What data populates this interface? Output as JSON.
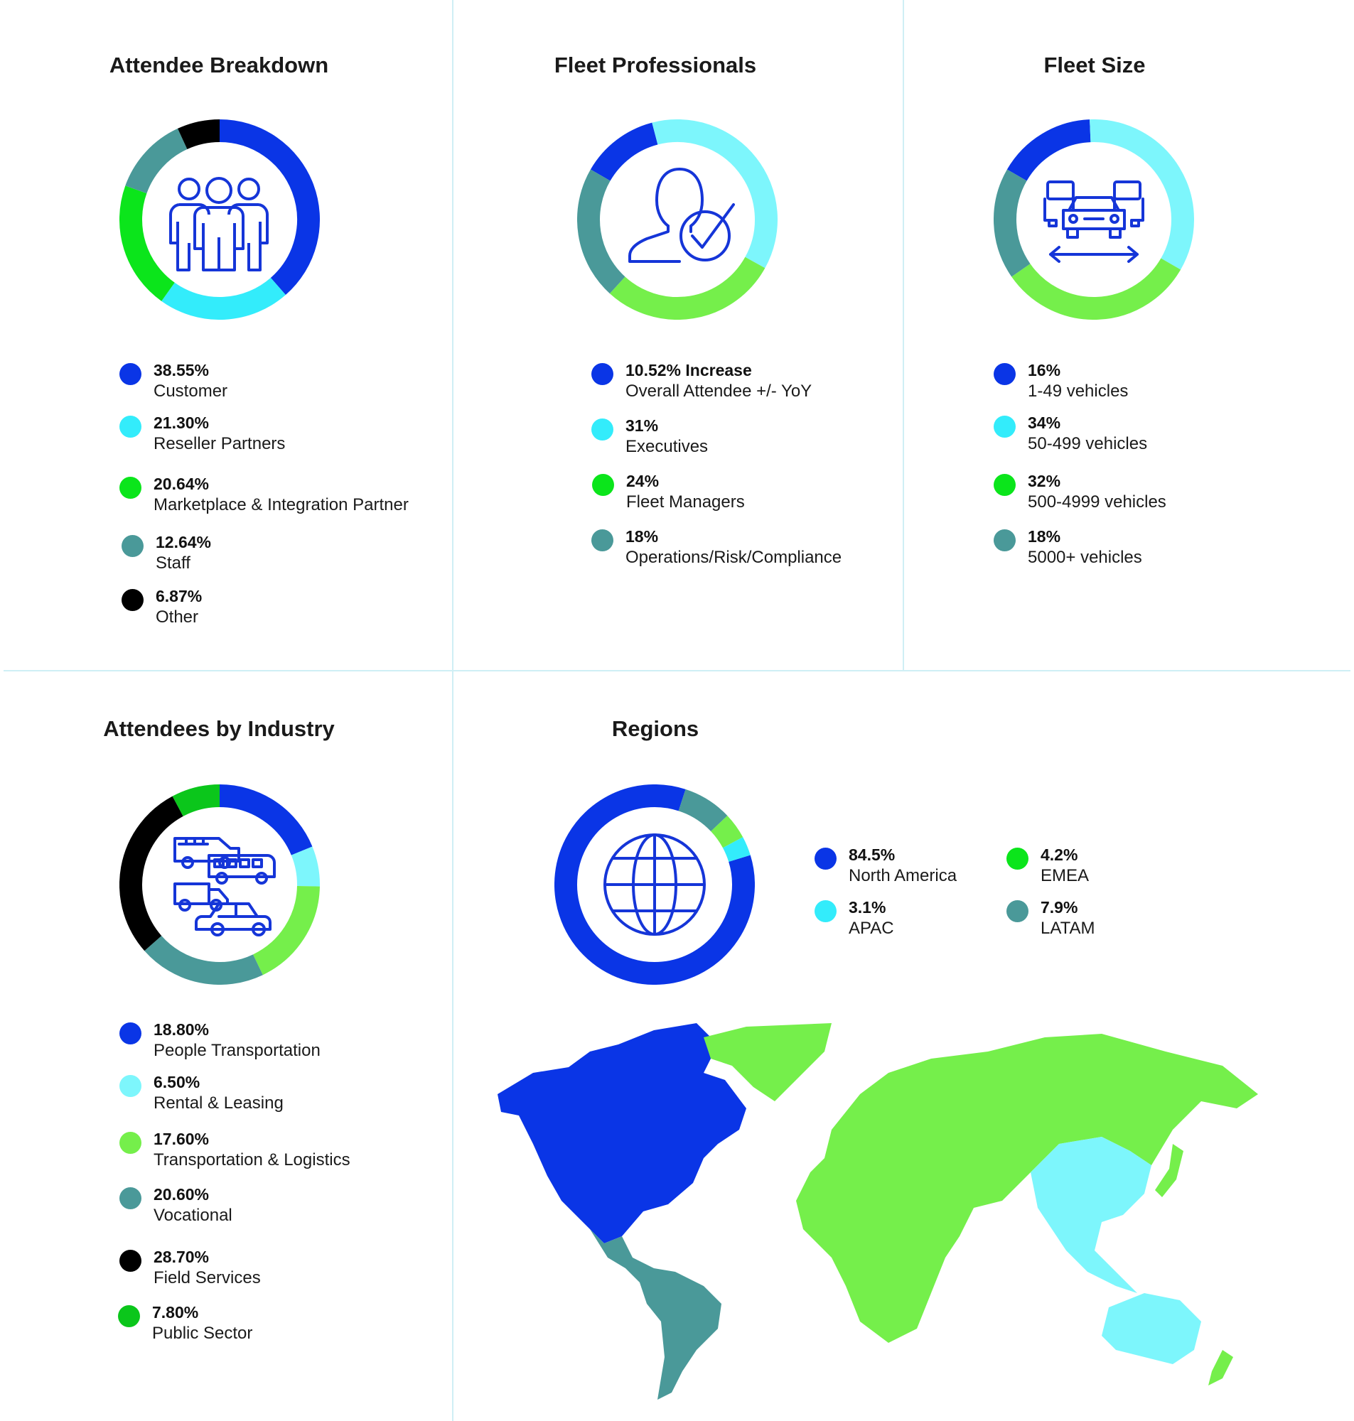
{
  "colors": {
    "blue": "#0a35e6",
    "cyan": "#33ecfb",
    "light_cyan": "#7df6fc",
    "green": "#0be51b",
    "light_green": "#75ef4b",
    "teal": "#4a9999",
    "black": "#000000",
    "icon": "#1535d8",
    "mid_green": "#0bc61b"
  },
  "chart_data": [
    {
      "type": "pie",
      "title": "Attendee Breakdown",
      "icon": "people-group-icon",
      "slices": [
        {
          "value": 38.55,
          "label": "Customer",
          "display": "38.55%",
          "color": "#0a35e6"
        },
        {
          "value": 21.3,
          "label": "Reseller Partners",
          "display": "21.30%",
          "color": "#33ecfb"
        },
        {
          "value": 20.64,
          "label": "Marketplace & Integration Partner",
          "display": "20.64%",
          "color": "#0be51b"
        },
        {
          "value": 12.64,
          "label": "Staff",
          "display": "12.64%",
          "color": "#4a9999"
        },
        {
          "value": 6.87,
          "label": "Other",
          "display": "6.87%",
          "color": "#000000"
        }
      ]
    },
    {
      "type": "pie",
      "title": "Fleet Professionals",
      "icon": "user-check-icon",
      "slices": [
        {
          "value": 10.52,
          "label": "Overall Attendee +/- YoY",
          "display": "10.52% Increase",
          "color": "#0a35e6"
        },
        {
          "value": 31,
          "label": "Executives",
          "display": "31%",
          "color": "#7df6fc"
        },
        {
          "value": 24,
          "label": "Fleet Managers",
          "display": "24%",
          "color": "#75ef4b"
        },
        {
          "value": 18,
          "label": "Operations/Risk/Compliance",
          "display": "18%",
          "color": "#4a9999"
        }
      ]
    },
    {
      "type": "pie",
      "title": "Fleet Size",
      "icon": "fleet-vehicles-icon",
      "slices": [
        {
          "value": 16,
          "label": "1-49 vehicles",
          "display": "16%",
          "color": "#0a35e6"
        },
        {
          "value": 34,
          "label": "50-499 vehicles",
          "display": "34%",
          "color": "#7df6fc"
        },
        {
          "value": 32,
          "label": "500-4999 vehicles",
          "display": "32%",
          "color": "#75ef4b"
        },
        {
          "value": 18,
          "label": "5000+ vehicles",
          "display": "18%",
          "color": "#4a9999"
        }
      ]
    },
    {
      "type": "pie",
      "title": "Attendees by Industry",
      "icon": "vehicles-icon",
      "slices": [
        {
          "value": 18.8,
          "label": "People Transportation",
          "display": "18.80%",
          "color": "#0a35e6"
        },
        {
          "value": 6.5,
          "label": "Rental & Leasing",
          "display": "6.50%",
          "color": "#7df6fc"
        },
        {
          "value": 17.6,
          "label": "Transportation & Logistics",
          "display": "17.60%",
          "color": "#75ef4b"
        },
        {
          "value": 20.6,
          "label": "Vocational",
          "display": "20.60%",
          "color": "#4a9999"
        },
        {
          "value": 28.7,
          "label": "Field Services",
          "display": "28.70%",
          "color": "#000000"
        },
        {
          "value": 7.8,
          "label": "Public Sector",
          "display": "7.80%",
          "color": "#0bc61b"
        }
      ]
    },
    {
      "type": "pie",
      "title": "Regions",
      "icon": "globe-icon",
      "slices": [
        {
          "value": 84.5,
          "label": "North America",
          "display": "84.5%",
          "color": "#0a35e6"
        },
        {
          "value": 3.1,
          "label": "APAC",
          "display": "3.1%",
          "color": "#33ecfb"
        },
        {
          "value": 4.2,
          "label": "EMEA",
          "display": "4.2%",
          "color": "#75ef4b"
        },
        {
          "value": 7.9,
          "label": "LATAM",
          "display": "7.9%",
          "color": "#4a9999"
        }
      ]
    }
  ]
}
